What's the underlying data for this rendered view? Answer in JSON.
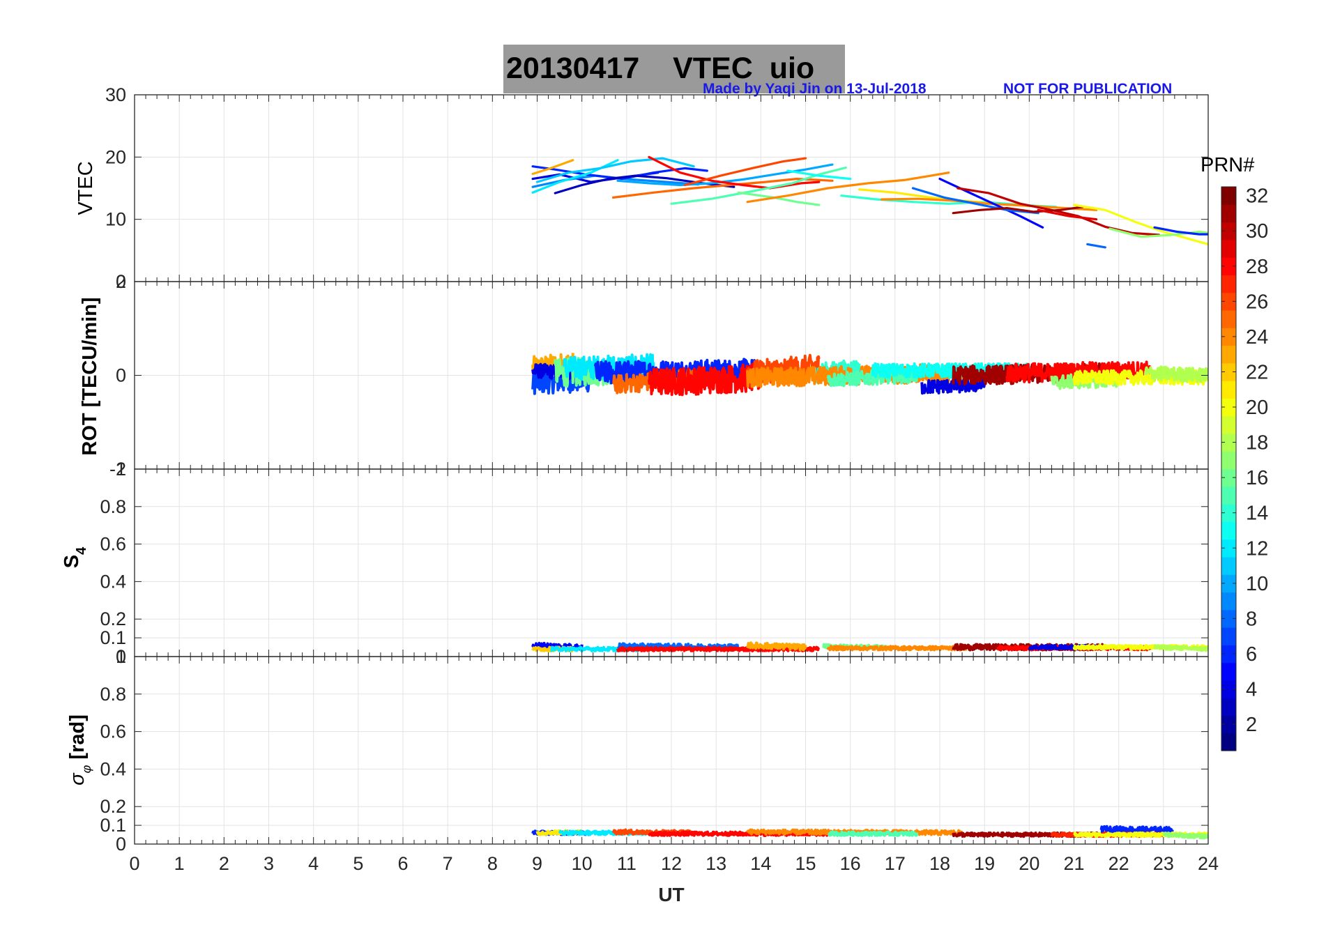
{
  "figure": {
    "title_date": "20130417",
    "title_main": "VTEC",
    "title_station": "uio",
    "credit_author": "Made by Yaqi Jin on 13-Jul-2018",
    "credit_notice": "NOT FOR PUBLICATION"
  },
  "colorbar": {
    "label": "PRN#",
    "range": [
      1,
      32
    ],
    "ticks": [
      2,
      4,
      6,
      8,
      10,
      12,
      14,
      16,
      18,
      20,
      22,
      24,
      26,
      28,
      30,
      32
    ],
    "colormap": "jet"
  },
  "chart_data": [
    {
      "type": "line",
      "panel": "vtec",
      "ylabel": "VTEC",
      "ylim": [
        0,
        30
      ],
      "xlim": [
        0,
        24
      ],
      "yticks": [
        0,
        10,
        20,
        30
      ],
      "grid": true,
      "series": [
        {
          "prn": 4,
          "x": [
            8.9,
            9.5,
            10.2,
            11.0,
            11.7
          ],
          "y": [
            16.5,
            17.2,
            16.0,
            16.8,
            17.5
          ]
        },
        {
          "prn": 9,
          "x": [
            8.9,
            9.6,
            10.3,
            11.1,
            11.9,
            12.6
          ],
          "y": [
            15.2,
            16.3,
            17.0,
            16.4,
            16.0,
            15.6
          ]
        },
        {
          "prn": 6,
          "x": [
            8.9,
            9.4,
            10.1,
            10.9,
            11.6,
            12.3,
            12.8
          ],
          "y": [
            18.5,
            18.0,
            17.2,
            16.5,
            17.5,
            18.2,
            17.8
          ]
        },
        {
          "prn": 12,
          "x": [
            8.9,
            9.5,
            10.2,
            10.8
          ],
          "y": [
            14.3,
            16.0,
            17.5,
            19.5
          ]
        },
        {
          "prn": 23,
          "x": [
            8.9,
            9.3,
            9.8
          ],
          "y": [
            17.3,
            18.2,
            19.5
          ]
        },
        {
          "prn": 11,
          "x": [
            9.0,
            9.7,
            10.4,
            11.1,
            11.8,
            12.5
          ],
          "y": [
            16.0,
            17.5,
            18.2,
            19.3,
            19.8,
            18.5
          ]
        },
        {
          "prn": 3,
          "x": [
            9.4,
            10.0,
            10.6,
            11.2,
            11.9,
            12.7,
            13.4
          ],
          "y": [
            14.2,
            15.5,
            16.5,
            17.0,
            16.6,
            15.8,
            15.2
          ]
        },
        {
          "prn": 10,
          "x": [
            10.8,
            11.5,
            12.2,
            12.9,
            13.6,
            14.3,
            15.0,
            15.6
          ],
          "y": [
            16.2,
            15.8,
            15.5,
            15.8,
            16.4,
            17.2,
            18.0,
            18.8
          ]
        },
        {
          "prn": 25,
          "x": [
            10.7,
            11.6,
            12.5,
            13.3,
            14.1,
            14.8,
            15.6
          ],
          "y": [
            13.5,
            14.3,
            15.0,
            15.5,
            16.0,
            16.5,
            16.2
          ]
        },
        {
          "prn": 28,
          "x": [
            11.5,
            12.2,
            12.9,
            13.6,
            14.2,
            14.9,
            15.3
          ],
          "y": [
            20.0,
            17.5,
            16.2,
            15.5,
            15.0,
            15.8,
            16.0
          ]
        },
        {
          "prn": 26,
          "x": [
            12.3,
            13.1,
            13.8,
            14.5,
            15.0
          ],
          "y": [
            15.5,
            17.0,
            18.2,
            19.3,
            19.8
          ]
        },
        {
          "prn": 15,
          "x": [
            12.0,
            12.9,
            13.8,
            14.7,
            15.3,
            15.9
          ],
          "y": [
            12.5,
            13.3,
            14.5,
            15.8,
            17.2,
            18.3
          ]
        },
        {
          "prn": 16,
          "x": [
            13.5,
            14.3,
            14.8,
            15.3
          ],
          "y": [
            14.3,
            13.5,
            12.8,
            12.3
          ]
        },
        {
          "prn": 24,
          "x": [
            13.7,
            14.6,
            15.5,
            16.4,
            17.2,
            17.8,
            18.2
          ],
          "y": [
            12.8,
            13.8,
            15.0,
            15.8,
            16.3,
            17.0,
            17.5
          ]
        },
        {
          "prn": 13,
          "x": [
            14.6,
            15.3,
            16.0
          ],
          "y": [
            17.8,
            17.0,
            16.5
          ]
        },
        {
          "prn": 14,
          "x": [
            15.8,
            16.6,
            17.4,
            18.2,
            19.0,
            19.8,
            20.6
          ],
          "y": [
            13.8,
            13.2,
            12.8,
            12.5,
            12.8,
            12.3,
            12.0
          ]
        },
        {
          "prn": 21,
          "x": [
            16.2,
            17.0,
            17.8,
            18.5,
            19.2
          ],
          "y": [
            14.8,
            14.3,
            13.5,
            13.0,
            12.5
          ]
        },
        {
          "prn": 24,
          "x": [
            16.7,
            17.5,
            18.3,
            19.1,
            19.9,
            20.8,
            21.5
          ],
          "y": [
            13.2,
            13.3,
            13.0,
            12.5,
            12.2,
            11.8,
            11.5
          ]
        },
        {
          "prn": 5,
          "x": [
            18.0,
            18.6,
            19.2,
            19.8,
            20.3
          ],
          "y": [
            16.5,
            14.5,
            12.5,
            10.5,
            8.7
          ]
        },
        {
          "prn": 8,
          "x": [
            17.4,
            18.1,
            18.8,
            19.5,
            20.2
          ],
          "y": [
            15.0,
            13.5,
            12.5,
            11.5,
            11.0
          ]
        },
        {
          "prn": 30,
          "x": [
            18.4,
            19.1,
            19.8,
            20.5,
            21.1,
            21.7,
            22.3,
            22.9
          ],
          "y": [
            15.0,
            14.2,
            12.5,
            11.5,
            10.5,
            8.8,
            7.8,
            7.5
          ]
        },
        {
          "prn": 31,
          "x": [
            18.3,
            18.9,
            19.5,
            20.1,
            20.7,
            21.2
          ],
          "y": [
            11.0,
            11.5,
            11.8,
            11.2,
            11.5,
            12.0
          ]
        },
        {
          "prn": 29,
          "x": [
            20.2,
            20.9,
            21.5
          ],
          "y": [
            11.5,
            10.5,
            10.0
          ]
        },
        {
          "prn": 20,
          "x": [
            21.0,
            21.7,
            22.4,
            23.0,
            23.6,
            24.0
          ],
          "y": [
            12.3,
            11.5,
            9.5,
            8.0,
            6.8,
            6.0
          ]
        },
        {
          "prn": 17,
          "x": [
            21.8,
            22.5,
            23.2,
            23.8,
            24.0
          ],
          "y": [
            8.5,
            7.2,
            7.5,
            8.0,
            7.8
          ]
        },
        {
          "prn": 6,
          "x": [
            22.8,
            23.3,
            23.8,
            24.0
          ],
          "y": [
            8.7,
            8.0,
            7.6,
            7.6
          ]
        },
        {
          "prn": 8,
          "x": [
            21.3,
            21.7
          ],
          "y": [
            6.0,
            5.5
          ]
        }
      ]
    },
    {
      "type": "line",
      "panel": "rot",
      "ylabel": "ROT [TECU/min]",
      "ylim": [
        -2,
        2
      ],
      "xlim": [
        0,
        24
      ],
      "yticks": [
        -2,
        0,
        2
      ],
      "grid": true,
      "noisy": true,
      "series": [
        {
          "prn": 23,
          "x": [
            8.9,
            9.8
          ],
          "y": [
            0.15,
            0.25
          ],
          "noise": 0.25
        },
        {
          "prn": 7,
          "x": [
            8.9,
            10.2
          ],
          "y": [
            -0.15,
            -0.1
          ],
          "noise": 0.25
        },
        {
          "prn": 4,
          "x": [
            8.9,
            9.9
          ],
          "y": [
            0.1,
            0.05
          ],
          "noise": 0.15
        },
        {
          "prn": 16,
          "x": [
            9.4,
            10.8
          ],
          "y": [
            0.05,
            0.1
          ],
          "noise": 0.3
        },
        {
          "prn": 12,
          "x": [
            9.6,
            11.6
          ],
          "y": [
            0.15,
            0.2
          ],
          "noise": 0.25
        },
        {
          "prn": 6,
          "x": [
            10.3,
            13.9
          ],
          "y": [
            0.05,
            0.1
          ],
          "noise": 0.25
        },
        {
          "prn": 25,
          "x": [
            10.7,
            12.6
          ],
          "y": [
            -0.2,
            -0.05
          ],
          "noise": 0.2
        },
        {
          "prn": 28,
          "x": [
            11.5,
            14.0
          ],
          "y": [
            -0.15,
            -0.05
          ],
          "noise": 0.3
        },
        {
          "prn": 26,
          "x": [
            13.7,
            15.3
          ],
          "y": [
            0.05,
            0.2
          ],
          "noise": 0.25
        },
        {
          "prn": 14,
          "x": [
            15.2,
            16.2
          ],
          "y": [
            0.05,
            0.15
          ],
          "noise": 0.2
        },
        {
          "prn": 24,
          "x": [
            13.7,
            18.5
          ],
          "y": [
            -0.05,
            0.05
          ],
          "noise": 0.2
        },
        {
          "prn": 15,
          "x": [
            15.5,
            17.5
          ],
          "y": [
            -0.1,
            0.0
          ],
          "noise": 0.15
        },
        {
          "prn": 13,
          "x": [
            16.5,
            20.0
          ],
          "y": [
            0.1,
            0.1
          ],
          "noise": 0.15
        },
        {
          "prn": 4,
          "x": [
            17.6,
            19.0
          ],
          "y": [
            -0.25,
            -0.2
          ],
          "noise": 0.15
        },
        {
          "prn": 31,
          "x": [
            18.3,
            21.7
          ],
          "y": [
            0.0,
            0.05
          ],
          "noise": 0.2
        },
        {
          "prn": 28,
          "x": [
            19.5,
            22.7
          ],
          "y": [
            0.05,
            0.1
          ],
          "noise": 0.2
        },
        {
          "prn": 17,
          "x": [
            20.5,
            22.0
          ],
          "y": [
            -0.15,
            -0.1
          ],
          "noise": 0.15
        },
        {
          "prn": 20,
          "x": [
            21.0,
            24.0
          ],
          "y": [
            -0.05,
            -0.05
          ],
          "noise": 0.15
        },
        {
          "prn": 18,
          "x": [
            22.6,
            24.0
          ],
          "y": [
            0.05,
            0.0
          ],
          "noise": 0.15
        }
      ]
    },
    {
      "type": "line",
      "panel": "s4",
      "ylabel": "S4",
      "ylim": [
        0,
        1
      ],
      "xlim": [
        0,
        24
      ],
      "yticks": [
        0,
        0.1,
        0.2,
        0.4,
        0.6,
        0.8,
        1
      ],
      "grid": true,
      "noisy": true,
      "series": [
        {
          "prn": 5,
          "x": [
            8.9,
            10.0
          ],
          "y": [
            0.06,
            0.05
          ],
          "noise": 0.015
        },
        {
          "prn": 22,
          "x": [
            8.9,
            9.8
          ],
          "y": [
            0.04,
            0.04
          ],
          "noise": 0.01
        },
        {
          "prn": 12,
          "x": [
            9.3,
            11.5
          ],
          "y": [
            0.04,
            0.04
          ],
          "noise": 0.01
        },
        {
          "prn": 8,
          "x": [
            10.8,
            13.5
          ],
          "y": [
            0.055,
            0.05
          ],
          "noise": 0.015
        },
        {
          "prn": 28,
          "x": [
            10.8,
            15.3
          ],
          "y": [
            0.04,
            0.04
          ],
          "noise": 0.01
        },
        {
          "prn": 23,
          "x": [
            13.7,
            15.0
          ],
          "y": [
            0.06,
            0.05
          ],
          "noise": 0.015
        },
        {
          "prn": 16,
          "x": [
            15.4,
            16.8
          ],
          "y": [
            0.055,
            0.05
          ],
          "noise": 0.01
        },
        {
          "prn": 24,
          "x": [
            15.5,
            18.6
          ],
          "y": [
            0.045,
            0.045
          ],
          "noise": 0.01
        },
        {
          "prn": 31,
          "x": [
            18.3,
            21.7
          ],
          "y": [
            0.05,
            0.05
          ],
          "noise": 0.015
        },
        {
          "prn": 28,
          "x": [
            19.3,
            22.7
          ],
          "y": [
            0.045,
            0.045
          ],
          "noise": 0.01
        },
        {
          "prn": 4,
          "x": [
            20.0,
            21.5
          ],
          "y": [
            0.05,
            0.05
          ],
          "noise": 0.01
        },
        {
          "prn": 20,
          "x": [
            21.0,
            24.0
          ],
          "y": [
            0.05,
            0.05
          ],
          "noise": 0.01
        },
        {
          "prn": 18,
          "x": [
            22.8,
            24.0
          ],
          "y": [
            0.05,
            0.04
          ],
          "noise": 0.01
        }
      ]
    },
    {
      "type": "line",
      "panel": "sigma_phi",
      "ylabel": "σφ [rad]",
      "ylim": [
        0,
        1
      ],
      "xlim": [
        0,
        24
      ],
      "yticks": [
        0,
        0.1,
        0.2,
        0.4,
        0.6,
        0.8,
        1
      ],
      "xticks": [
        0,
        1,
        2,
        3,
        4,
        5,
        6,
        7,
        8,
        9,
        10,
        11,
        12,
        13,
        14,
        15,
        16,
        17,
        18,
        19,
        20,
        21,
        22,
        23,
        24
      ],
      "xlabel": "UT",
      "grid": true,
      "noisy": true,
      "series": [
        {
          "prn": 6,
          "x": [
            8.9,
            10.2
          ],
          "y": [
            0.06,
            0.06
          ],
          "noise": 0.01
        },
        {
          "prn": 21,
          "x": [
            9.0,
            10.0
          ],
          "y": [
            0.06,
            0.065
          ],
          "noise": 0.01
        },
        {
          "prn": 12,
          "x": [
            9.5,
            11.5
          ],
          "y": [
            0.06,
            0.06
          ],
          "noise": 0.01
        },
        {
          "prn": 26,
          "x": [
            10.7,
            12.5
          ],
          "y": [
            0.065,
            0.06
          ],
          "noise": 0.012
        },
        {
          "prn": 28,
          "x": [
            11.5,
            15.5
          ],
          "y": [
            0.055,
            0.055
          ],
          "noise": 0.01
        },
        {
          "prn": 24,
          "x": [
            13.7,
            18.5
          ],
          "y": [
            0.065,
            0.06
          ],
          "noise": 0.012
        },
        {
          "prn": 15,
          "x": [
            15.5,
            17.5
          ],
          "y": [
            0.055,
            0.055
          ],
          "noise": 0.01
        },
        {
          "prn": 31,
          "x": [
            18.3,
            21.7
          ],
          "y": [
            0.05,
            0.05
          ],
          "noise": 0.01
        },
        {
          "prn": 6,
          "x": [
            21.6,
            23.2
          ],
          "y": [
            0.08,
            0.075
          ],
          "noise": 0.015
        },
        {
          "prn": 27,
          "x": [
            20.5,
            23.0
          ],
          "y": [
            0.05,
            0.05
          ],
          "noise": 0.01
        },
        {
          "prn": 20,
          "x": [
            21.0,
            24.0
          ],
          "y": [
            0.05,
            0.05
          ],
          "noise": 0.01
        },
        {
          "prn": 17,
          "x": [
            23.0,
            24.0
          ],
          "y": [
            0.05,
            0.04
          ],
          "noise": 0.01
        }
      ]
    }
  ]
}
